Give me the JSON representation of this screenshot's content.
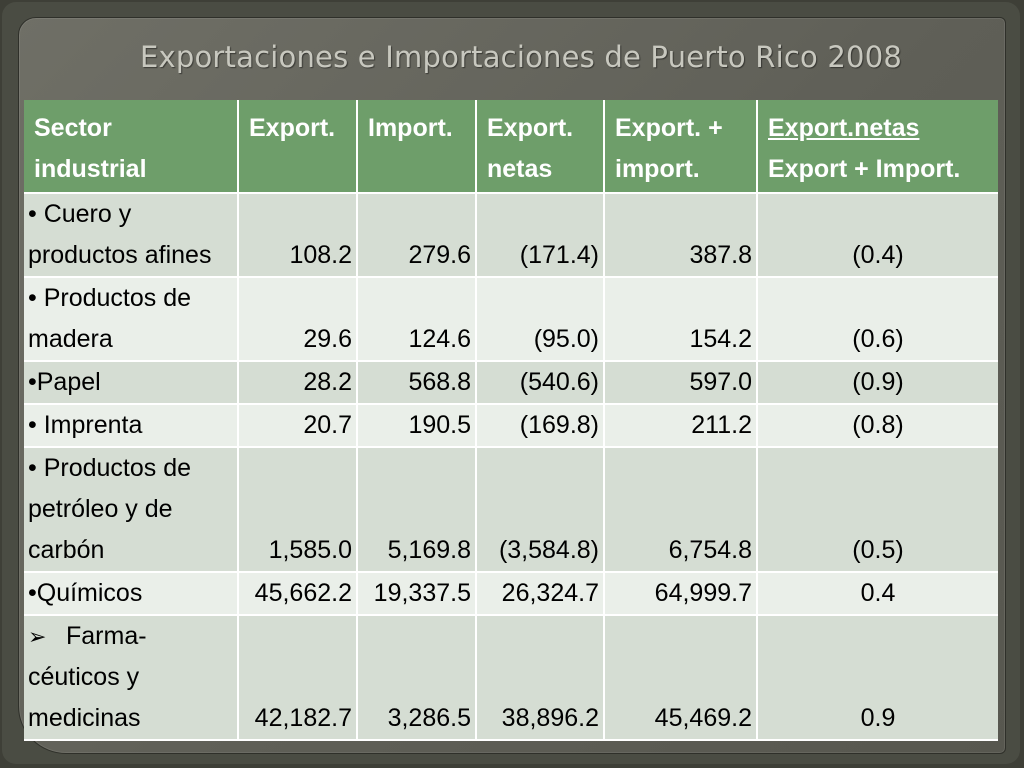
{
  "title": "Exportaciones e Importaciones de Puerto Rico 2008",
  "table": {
    "headers": [
      {
        "lines": [
          "Sector",
          "industrial"
        ]
      },
      {
        "lines": [
          "Export."
        ]
      },
      {
        "lines": [
          "Import."
        ]
      },
      {
        "lines": [
          "Export.",
          "netas"
        ]
      },
      {
        "lines": [
          "Export. +",
          "import."
        ]
      },
      {
        "lines": [
          "Export.netas",
          "Export + Import."
        ]
      }
    ],
    "rows": [
      {
        "sector": [
          "• Cuero y",
          "productos afines"
        ],
        "export": "108.2",
        "import": "279.6",
        "netas": "(171.4)",
        "total": "387.8",
        "ratio": "(0.4)"
      },
      {
        "sector": [
          "• Productos de",
          "madera"
        ],
        "export": "29.6",
        "import": "124.6",
        "netas": "(95.0)",
        "total": "154.2",
        "ratio": "(0.6)"
      },
      {
        "sector": [
          "•Papel"
        ],
        "export": "28.2",
        "import": "568.8",
        "netas": "(540.6)",
        "total": "597.0",
        "ratio": "(0.9)"
      },
      {
        "sector": [
          "• Imprenta"
        ],
        "export": "20.7",
        "import": "190.5",
        "netas": "(169.8)",
        "total": "211.2",
        "ratio": "(0.8)"
      },
      {
        "sector": [
          "• Productos de",
          "petróleo y de",
          "carbón"
        ],
        "export": "1,585.0",
        "import": "5,169.8",
        "netas": "(3,584.8)",
        "total": "6,754.8",
        "ratio": "(0.5)"
      },
      {
        "sector": [
          "•Químicos"
        ],
        "export": "45,662.2",
        "import": "19,337.5",
        "netas": "26,324.7",
        "total": "64,999.7",
        "ratio": "0.4"
      },
      {
        "sector": [
          "Farma-",
          "céuticos y",
          "medicinas"
        ],
        "arrow": "➢",
        "export": "42,182.7",
        "import": "3,286.5",
        "netas": "38,896.2",
        "total": "45,469.2",
        "ratio": "0.9"
      }
    ]
  }
}
